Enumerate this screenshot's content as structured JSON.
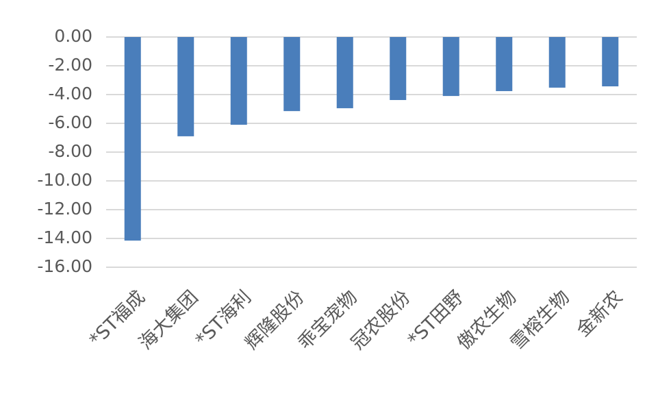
{
  "chart_data": {
    "type": "bar",
    "categories": [
      "*ST福成",
      "海大集团",
      "*ST海利",
      "辉隆股份",
      "乖宝宠物",
      "冠农股份",
      "*ST田野",
      "傲农生物",
      "雪榕生物",
      "金新农"
    ],
    "values": [
      -14.15,
      -6.9,
      -6.1,
      -5.15,
      -4.95,
      -4.38,
      -4.1,
      -3.76,
      -3.52,
      -3.43
    ],
    "color": "#4a7ebb",
    "ylim": [
      -16,
      0
    ],
    "yticks": [
      {
        "value": 0,
        "label": "0.00"
      },
      {
        "value": -2,
        "label": "-2.00"
      },
      {
        "value": -4,
        "label": "-4.00"
      },
      {
        "value": -6,
        "label": "-6.00"
      },
      {
        "value": -8,
        "label": "-8.00"
      },
      {
        "value": -10,
        "label": "-10.00"
      },
      {
        "value": -12,
        "label": "-12.00"
      },
      {
        "value": -14,
        "label": "-14.00"
      },
      {
        "value": -16,
        "label": "-16.00"
      }
    ],
    "grid": true
  }
}
